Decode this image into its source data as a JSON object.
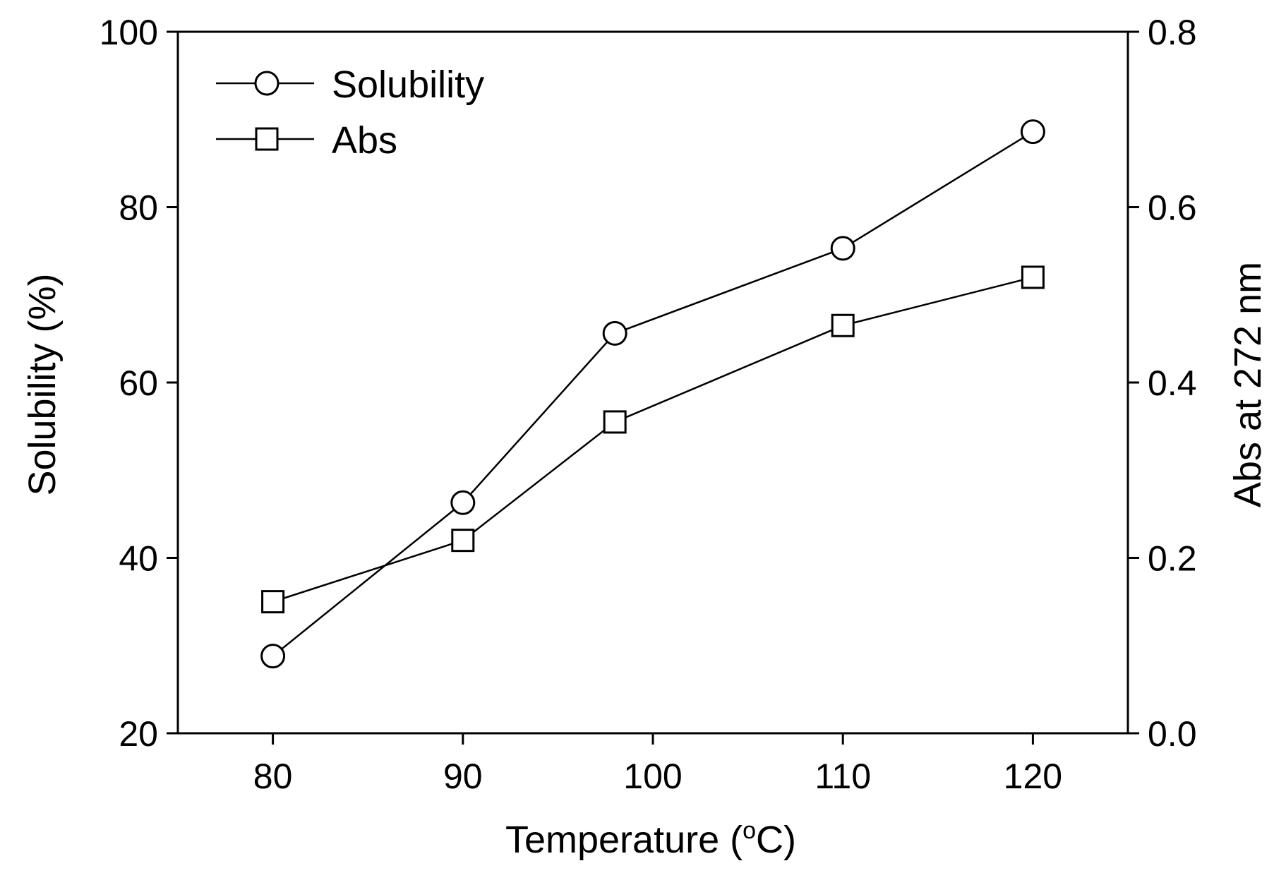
{
  "chart_data": {
    "type": "line",
    "x": [
      80,
      90,
      98,
      110,
      120
    ],
    "xlabel_main": "Temperature (",
    "xlabel_sup": "o",
    "xlabel_tail": "C)",
    "ylabel": "Solubility (%)",
    "y2label": "Abs at 272 nm",
    "xlim": [
      75,
      125
    ],
    "ylim": [
      20,
      100
    ],
    "y2lim": [
      0.0,
      0.8
    ],
    "x_ticks": [
      "80",
      "90",
      "100",
      "110",
      "120"
    ],
    "x_tick_values": [
      80,
      90,
      100,
      110,
      120
    ],
    "y_ticks": [
      "20",
      "40",
      "60",
      "80",
      "100"
    ],
    "y_tick_values": [
      20,
      40,
      60,
      80,
      100
    ],
    "y2_ticks": [
      "0.0",
      "0.2",
      "0.4",
      "0.6",
      "0.8"
    ],
    "y2_tick_values": [
      0.0,
      0.2,
      0.4,
      0.6,
      0.8
    ],
    "grid": false,
    "legend_position": "top-left",
    "series": [
      {
        "name": "Solubility",
        "axis": "left",
        "marker": "circle",
        "values": [
          28.8,
          46.3,
          65.6,
          75.3,
          88.6
        ]
      },
      {
        "name": "Abs",
        "axis": "right",
        "marker": "square",
        "values": [
          0.15,
          0.22,
          0.355,
          0.465,
          0.52
        ]
      }
    ],
    "colors": {
      "line": "#000000",
      "marker_fill": "#ffffff",
      "background": "#ffffff"
    }
  }
}
